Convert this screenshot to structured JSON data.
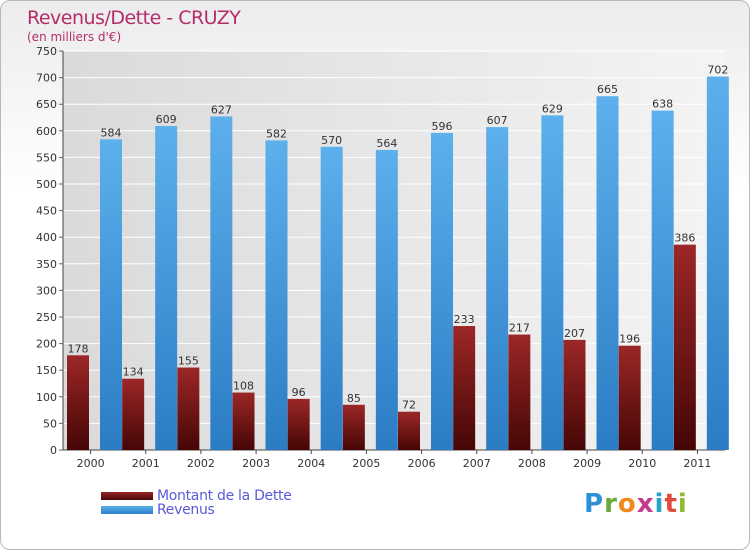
{
  "title": "Revenus/Dette - CRUZY",
  "subtitle": "(en milliers d'€)",
  "brand": "Proxiti",
  "colors": {
    "title": "#b52c6b",
    "dette": "#7b1a1a",
    "revenus": "#4a9fe0",
    "legend_text": "#5a5ad8"
  },
  "chart_data": {
    "type": "bar",
    "categories": [
      "2000",
      "2001",
      "2002",
      "2003",
      "2004",
      "2005",
      "2006",
      "2007",
      "2008",
      "2009",
      "2010",
      "2011"
    ],
    "series": [
      {
        "name": "Montant de la Dette",
        "values": [
          178,
          134,
          155,
          108,
          96,
          85,
          72,
          233,
          217,
          207,
          196,
          386
        ]
      },
      {
        "name": "Revenus",
        "values": [
          584,
          609,
          627,
          582,
          570,
          564,
          596,
          607,
          629,
          665,
          638,
          702
        ]
      }
    ],
    "ylim": [
      0,
      750
    ],
    "yticks": [
      0,
      50,
      100,
      150,
      200,
      250,
      300,
      350,
      400,
      450,
      500,
      550,
      600,
      650,
      700,
      750
    ],
    "grid": true,
    "legend_position": "bottom-left"
  }
}
